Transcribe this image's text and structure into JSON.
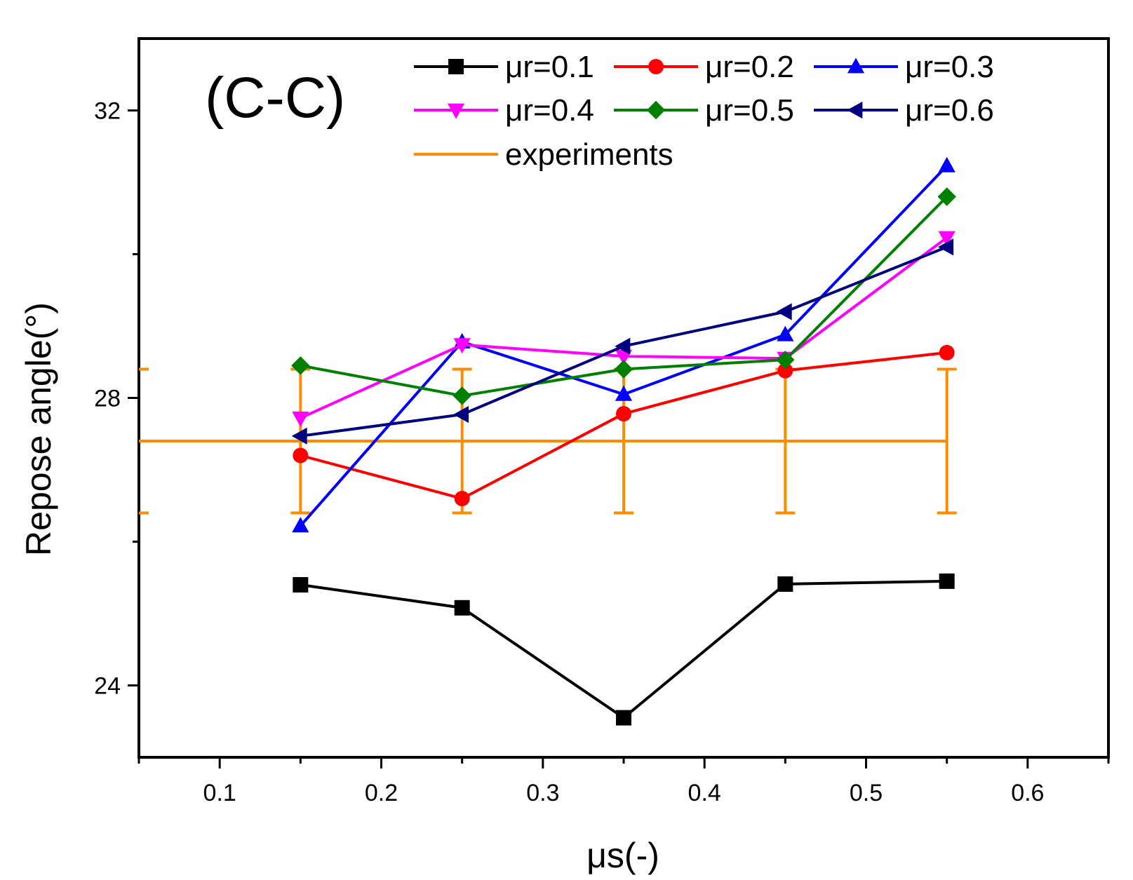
{
  "chart_data": {
    "type": "line",
    "panel_label": "(C-C)",
    "xlabel": "μs(-)",
    "ylabel": "Repose angle(°)",
    "xlim": [
      0.05,
      0.65
    ],
    "ylim": [
      23.0,
      33.0
    ],
    "x_ticks": [
      0.1,
      0.2,
      0.3,
      0.4,
      0.5,
      0.6
    ],
    "x_tick_labels": [
      "0.1",
      "0.2",
      "0.3",
      "0.4",
      "0.5",
      "0.6"
    ],
    "y_ticks": [
      24,
      28,
      32
    ],
    "y_tick_labels": [
      "24",
      "28",
      "32"
    ],
    "y_minor_ticks": [
      26,
      30
    ],
    "x": [
      0.15,
      0.25,
      0.35,
      0.45,
      0.55
    ],
    "series": [
      {
        "name": "μr=0.1",
        "label": "μr=0.1",
        "color": "#000000",
        "marker": "square",
        "values": [
          25.4,
          25.08,
          23.55,
          25.41,
          25.45
        ]
      },
      {
        "name": "μr=0.2",
        "label": "μr=0.2",
        "color": "#ff0000",
        "marker": "circle",
        "values": [
          27.2,
          26.6,
          27.78,
          28.38,
          28.63
        ]
      },
      {
        "name": "μr=0.3",
        "label": "μr=0.3",
        "color": "#0000ff",
        "marker": "triangle-up",
        "values": [
          26.22,
          28.78,
          28.05,
          28.88,
          31.23
        ]
      },
      {
        "name": "μr=0.4",
        "label": "μr=0.4",
        "color": "#ff00ff",
        "marker": "triangle-down",
        "values": [
          27.72,
          28.74,
          28.58,
          28.55,
          30.23
        ]
      },
      {
        "name": "μr=0.5",
        "label": "μr=0.5",
        "color": "#008000",
        "marker": "diamond",
        "values": [
          28.45,
          28.03,
          28.4,
          28.53,
          30.8
        ]
      },
      {
        "name": "μr=0.6",
        "label": "μr=0.6",
        "color": "#000080",
        "marker": "triangle-left",
        "values": [
          27.47,
          27.77,
          28.72,
          29.2,
          30.1
        ]
      }
    ],
    "experiments": {
      "name": "experiments",
      "label": "experiments",
      "color": "#ff8c00",
      "value": 27.4,
      "error_low": 26.4,
      "error_high": 28.4,
      "error_bar_x": [
        0.05,
        0.15,
        0.25,
        0.35,
        0.45,
        0.55
      ],
      "line_x_range": [
        0.05,
        0.55
      ]
    },
    "legend_position": "top-right"
  }
}
